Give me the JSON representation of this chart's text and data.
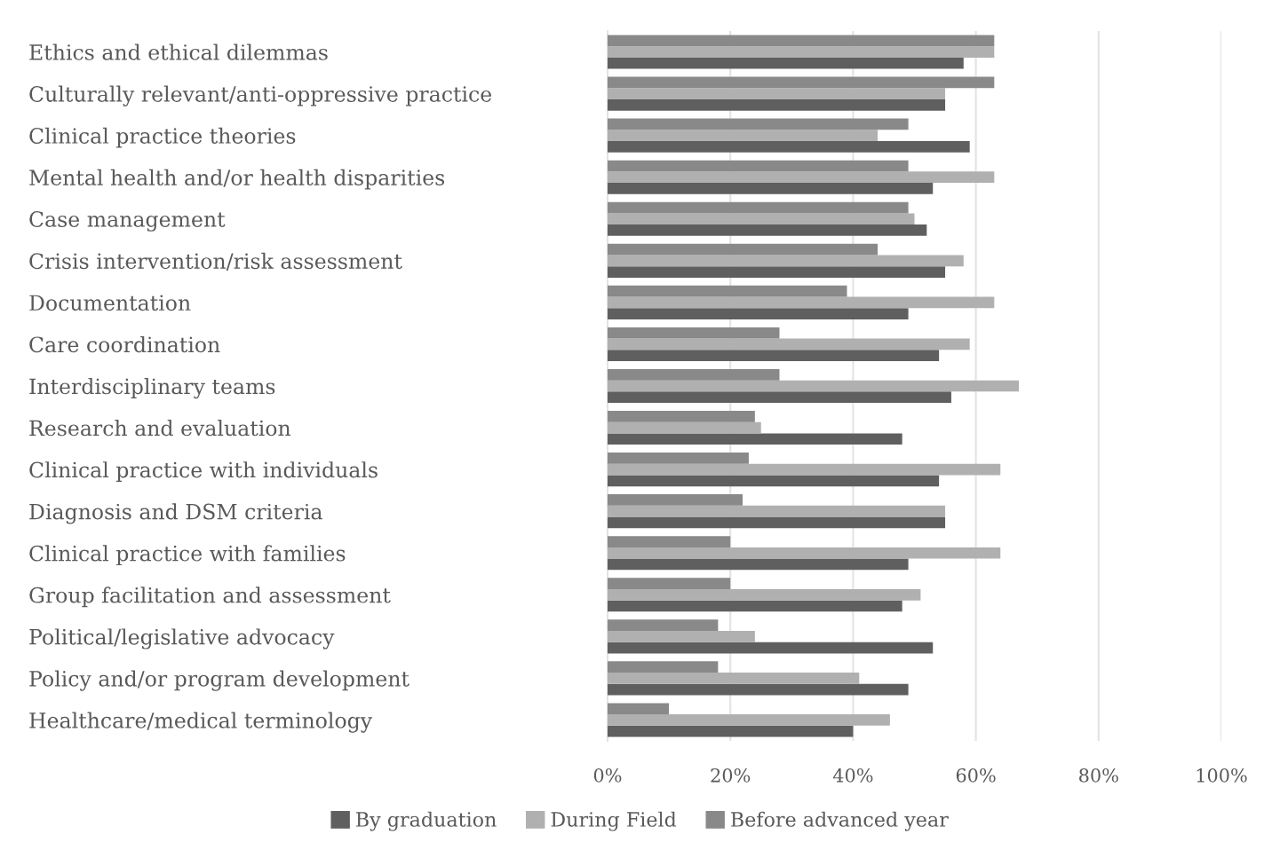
{
  "chart_data": {
    "type": "bar",
    "orientation": "horizontal",
    "categories": [
      "Ethics and ethical dilemmas",
      "Culturally relevant/anti-oppressive practice",
      "Clinical practice theories",
      "Mental health and/or health disparities",
      "Case management",
      "Crisis intervention/risk assessment",
      "Documentation",
      "Care coordination",
      "Interdisciplinary teams",
      "Research and evaluation",
      "Clinical practice with individuals",
      "Diagnosis and DSM criteria",
      "Clinical practice with families",
      "Group facilitation and assessment",
      "Political/legislative advocacy",
      "Policy and/or program development",
      "Healthcare/medical terminology"
    ],
    "series": [
      {
        "name": "By graduation",
        "color": "#5f5f5f",
        "values": [
          58,
          55,
          59,
          53,
          52,
          55,
          49,
          54,
          56,
          48,
          54,
          55,
          49,
          48,
          53,
          49,
          40
        ]
      },
      {
        "name": "During Field",
        "color": "#b0b0b0",
        "values": [
          63,
          55,
          44,
          63,
          50,
          58,
          63,
          59,
          67,
          25,
          64,
          55,
          64,
          51,
          24,
          41,
          46
        ]
      },
      {
        "name": "Before advanced year",
        "color": "#898989",
        "values": [
          63,
          63,
          49,
          49,
          49,
          44,
          39,
          28,
          28,
          24,
          23,
          22,
          20,
          20,
          18,
          18,
          10
        ]
      }
    ],
    "xlim": [
      0,
      100
    ],
    "xticks": [
      {
        "value": 0,
        "label": "0%"
      },
      {
        "value": 20,
        "label": "20%"
      },
      {
        "value": 40,
        "label": "40%"
      },
      {
        "value": 60,
        "label": "60%"
      },
      {
        "value": 80,
        "label": "80%"
      },
      {
        "value": 100,
        "label": "100%"
      }
    ],
    "grid": "x",
    "legend": "bottom"
  }
}
